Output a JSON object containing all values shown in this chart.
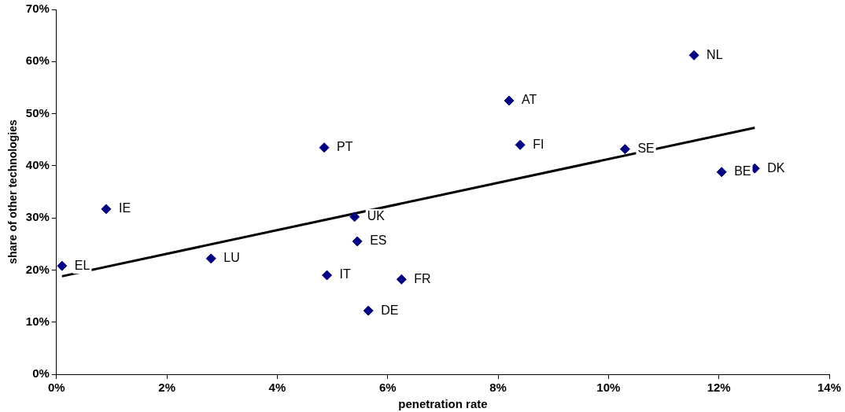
{
  "chart_data": {
    "type": "scatter",
    "xlabel": "penetration rate",
    "ylabel": "share of other technologies",
    "xlim": [
      0,
      14
    ],
    "ylim": [
      0,
      70
    ],
    "xticks": [
      {
        "value": 0,
        "label": "0%"
      },
      {
        "value": 2,
        "label": "2%"
      },
      {
        "value": 4,
        "label": "4%"
      },
      {
        "value": 6,
        "label": "6%"
      },
      {
        "value": 8,
        "label": "8%"
      },
      {
        "value": 10,
        "label": "10%"
      },
      {
        "value": 12,
        "label": "12%"
      },
      {
        "value": 14,
        "label": "14%"
      }
    ],
    "yticks": [
      {
        "value": 0,
        "label": "0%"
      },
      {
        "value": 10,
        "label": "10%"
      },
      {
        "value": 20,
        "label": "20%"
      },
      {
        "value": 30,
        "label": "30%"
      },
      {
        "value": 40,
        "label": "40%"
      },
      {
        "value": 50,
        "label": "50%"
      },
      {
        "value": 60,
        "label": "60%"
      },
      {
        "value": 70,
        "label": "70%"
      }
    ],
    "grid": false,
    "legend": false,
    "marker": "diamond",
    "series": [
      {
        "color": "#000080",
        "x": [
          0.1,
          0.9,
          2.8,
          4.85,
          4.9,
          5.4,
          5.45,
          5.65,
          6.25,
          8.2,
          8.4,
          10.3,
          11.55,
          12.05,
          12.65
        ],
        "values": [
          20.8,
          31.7,
          22.2,
          43.5,
          19,
          30.2,
          25.5,
          12.2,
          18.2,
          52.5,
          44,
          43.2,
          61.2,
          38.8,
          39.5
        ],
        "value_labels": [
          "EL",
          "IE",
          "LU",
          "PT",
          "IT",
          "UK",
          "ES",
          "DE",
          "FR",
          "AT",
          "FI",
          "SE",
          "NL",
          "BE",
          "DK"
        ]
      },
      {
        "type": "line",
        "color": "#000000",
        "x": [
          0.1,
          12.65
        ],
        "values": [
          18.8,
          47.3
        ],
        "marker": "none",
        "line_style": "solid"
      }
    ]
  }
}
